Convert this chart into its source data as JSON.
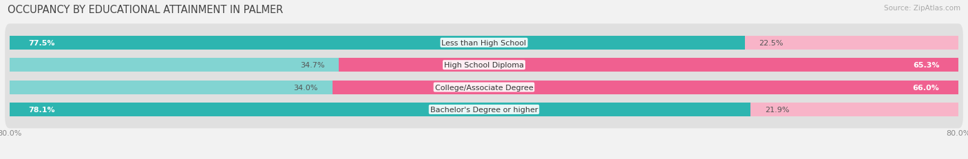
{
  "title": "OCCUPANCY BY EDUCATIONAL ATTAINMENT IN PALMER",
  "source": "Source: ZipAtlas.com",
  "categories": [
    "Less than High School",
    "High School Diploma",
    "College/Associate Degree",
    "Bachelor's Degree or higher"
  ],
  "owner_values": [
    77.5,
    34.7,
    34.0,
    78.1
  ],
  "renter_values": [
    22.5,
    65.3,
    66.0,
    21.9
  ],
  "owner_color_dark": "#2db5b0",
  "owner_color_light": "#82d4d2",
  "renter_color_dark": "#f06090",
  "renter_color_light": "#f8b4c8",
  "background_color": "#f2f2f2",
  "bar_bg_color": "#e0e0e0",
  "title_fontsize": 10.5,
  "label_fontsize": 8,
  "source_fontsize": 7.5,
  "legend_fontsize": 8,
  "x_min": 0,
  "x_max": 100,
  "x_axis_label_left": "80.0%",
  "x_axis_label_right": "80.0%"
}
